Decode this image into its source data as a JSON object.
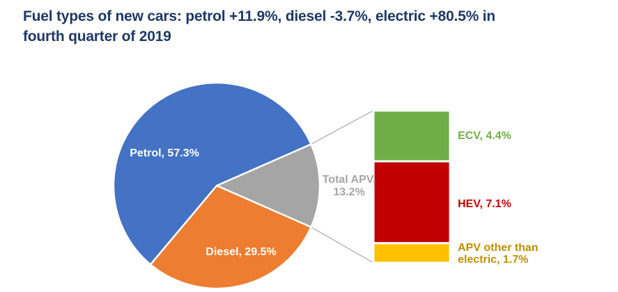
{
  "title": {
    "line1": "Fuel types of new cars: petrol +11.9%, diesel -3.7%, electric +80.5% in",
    "line2": "fourth quarter of 2019",
    "color": "#1F3864"
  },
  "chart_data": {
    "type": "pie",
    "subtype": "pie-of-bar",
    "title": "Fuel types of new cars: petrol +11.9%, diesel -3.7%, electric +80.5% in fourth quarter of 2019",
    "legend": "none",
    "data_labels": "category name, percentage",
    "connector_color": "#A6A6A6",
    "pie": {
      "slices": [
        {
          "label": "Petrol",
          "value": 57.3,
          "display": "Petrol, 57.3%",
          "color": "#4472C4",
          "label_color": "#FFFFFF"
        },
        {
          "label": "Diesel",
          "value": 29.5,
          "display": "Diesel, 29.5%",
          "color": "#ED7D31",
          "label_color": "#FFFFFF"
        },
        {
          "label": "Total APV",
          "value": 13.2,
          "display": "Total APV, 13.2%",
          "color": "#A5A5A5",
          "label_color": "#A5A5A5"
        }
      ]
    },
    "bar": {
      "total_label": "Total APV",
      "total_value": 13.2,
      "segments": [
        {
          "label": "ECV",
          "value": 4.4,
          "display": "ECV, 4.4%",
          "color": "#70AD47",
          "label_color": "#70AD47"
        },
        {
          "label": "HEV",
          "value": 7.1,
          "display": "HEV, 7.1%",
          "color": "#C00000",
          "label_color": "#C00000"
        },
        {
          "label": "APV other than electric",
          "value": 1.7,
          "display": "APV other than electric, 1.7%",
          "color": "#FFC000",
          "label_color": "#BF9000"
        }
      ]
    }
  }
}
